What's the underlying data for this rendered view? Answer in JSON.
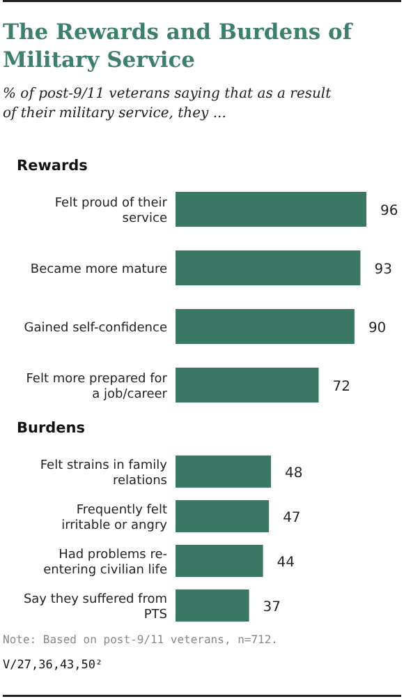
{
  "chart_data": [
    {
      "type": "bar",
      "orientation": "horizontal",
      "title": "The Rewards and Burdens of Military Service",
      "subtitle": "% of post-9/11 veterans saying that as a result of their military service, they ...",
      "legend_title": "Rewards",
      "categories": [
        "Felt proud of their service",
        "Became more mature",
        "Gained self-confidence",
        "Felt more prepared for a job/career"
      ],
      "values": [
        96,
        93,
        90,
        72
      ],
      "color": "#3a7764",
      "data_labels": true
    },
    {
      "type": "bar",
      "orientation": "horizontal",
      "legend_title": "Burdens",
      "categories": [
        "Felt strains in family relations",
        "Frequently felt irritable or angry",
        "Had problems re-entering civilian life",
        "Say they suffered from PTS"
      ],
      "values": [
        48,
        47,
        44,
        37
      ],
      "color": "#3a7764",
      "data_labels": true,
      "annotations": [
        "Note: Based on post-9/11 veterans, n=712.",
        "V/27,36,43,50²"
      ]
    }
  ]
}
